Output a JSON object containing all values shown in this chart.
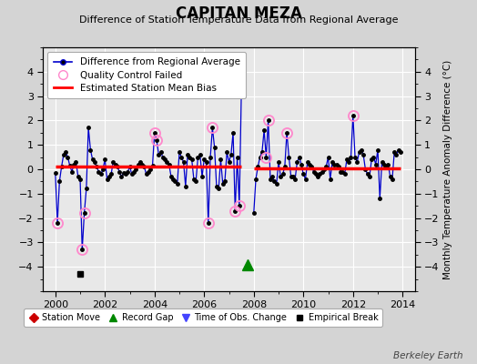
{
  "title": "CAPITAN MEZA",
  "subtitle": "Difference of Station Temperature Data from Regional Average",
  "ylabel": "Monthly Temperature Anomaly Difference (°C)",
  "xlim": [
    1999.5,
    2014.5
  ],
  "ylim": [
    -5,
    5
  ],
  "yticks": [
    -4,
    -3,
    -2,
    -1,
    0,
    1,
    2,
    3,
    4
  ],
  "xticks": [
    2000,
    2002,
    2004,
    2006,
    2008,
    2010,
    2012,
    2014
  ],
  "fig_facecolor": "#d4d4d4",
  "plot_facecolor": "#e8e8e8",
  "line_color": "#0000cc",
  "dot_color": "#000000",
  "bias_color": "#ff0000",
  "qc_color": "#ff88cc",
  "grid_color": "#ffffff",
  "watermark": "Berkeley Earth",
  "segment1_bias": 0.1,
  "segment2_bias": 0.05,
  "gap_start": 2007.583,
  "gap_end": 2007.75,
  "record_gap_x": 2007.75,
  "record_gap_y": -3.9,
  "empirical_break_x": 2001.0,
  "empirical_break_y": -4.3,
  "data": [
    [
      2000.0,
      -0.15
    ],
    [
      2000.083,
      -2.2
    ],
    [
      2000.167,
      -0.5
    ],
    [
      2000.25,
      0.1
    ],
    [
      2000.333,
      0.6
    ],
    [
      2000.417,
      0.7
    ],
    [
      2000.5,
      0.5
    ],
    [
      2000.583,
      0.15
    ],
    [
      2000.667,
      -0.1
    ],
    [
      2000.75,
      0.2
    ],
    [
      2000.833,
      0.3
    ],
    [
      2000.917,
      -0.3
    ],
    [
      2001.0,
      -0.4
    ],
    [
      2001.083,
      -3.3
    ],
    [
      2001.167,
      -1.8
    ],
    [
      2001.25,
      -0.8
    ],
    [
      2001.333,
      1.7
    ],
    [
      2001.417,
      0.8
    ],
    [
      2001.5,
      0.4
    ],
    [
      2001.583,
      0.3
    ],
    [
      2001.667,
      0.1
    ],
    [
      2001.75,
      -0.1
    ],
    [
      2001.833,
      -0.2
    ],
    [
      2001.917,
      0.0
    ],
    [
      2002.0,
      0.4
    ],
    [
      2002.083,
      -0.4
    ],
    [
      2002.167,
      -0.3
    ],
    [
      2002.25,
      -0.2
    ],
    [
      2002.333,
      0.3
    ],
    [
      2002.417,
      0.2
    ],
    [
      2002.5,
      0.1
    ],
    [
      2002.583,
      -0.1
    ],
    [
      2002.667,
      -0.3
    ],
    [
      2002.75,
      -0.15
    ],
    [
      2002.833,
      -0.2
    ],
    [
      2002.917,
      -0.1
    ],
    [
      2003.0,
      0.1
    ],
    [
      2003.083,
      -0.2
    ],
    [
      2003.167,
      -0.1
    ],
    [
      2003.25,
      0.0
    ],
    [
      2003.333,
      0.2
    ],
    [
      2003.417,
      0.3
    ],
    [
      2003.5,
      0.2
    ],
    [
      2003.583,
      0.1
    ],
    [
      2003.667,
      -0.2
    ],
    [
      2003.75,
      -0.1
    ],
    [
      2003.833,
      0.0
    ],
    [
      2003.917,
      0.15
    ],
    [
      2004.0,
      1.5
    ],
    [
      2004.083,
      1.2
    ],
    [
      2004.167,
      0.6
    ],
    [
      2004.25,
      0.7
    ],
    [
      2004.333,
      0.5
    ],
    [
      2004.417,
      0.4
    ],
    [
      2004.5,
      0.3
    ],
    [
      2004.583,
      0.2
    ],
    [
      2004.667,
      -0.3
    ],
    [
      2004.75,
      -0.4
    ],
    [
      2004.833,
      -0.5
    ],
    [
      2004.917,
      -0.6
    ],
    [
      2005.0,
      0.7
    ],
    [
      2005.083,
      0.5
    ],
    [
      2005.167,
      0.3
    ],
    [
      2005.25,
      -0.7
    ],
    [
      2005.333,
      0.6
    ],
    [
      2005.417,
      0.5
    ],
    [
      2005.5,
      0.4
    ],
    [
      2005.583,
      -0.4
    ],
    [
      2005.667,
      -0.5
    ],
    [
      2005.75,
      0.5
    ],
    [
      2005.833,
      0.6
    ],
    [
      2005.917,
      -0.3
    ],
    [
      2006.0,
      0.4
    ],
    [
      2006.083,
      0.3
    ],
    [
      2006.167,
      -2.2
    ],
    [
      2006.25,
      0.5
    ],
    [
      2006.333,
      1.7
    ],
    [
      2006.417,
      0.9
    ],
    [
      2006.5,
      -0.7
    ],
    [
      2006.583,
      -0.8
    ],
    [
      2006.667,
      0.4
    ],
    [
      2006.75,
      -0.6
    ],
    [
      2006.833,
      -0.5
    ],
    [
      2006.917,
      0.7
    ],
    [
      2007.0,
      0.3
    ],
    [
      2007.083,
      0.6
    ],
    [
      2007.167,
      1.5
    ],
    [
      2007.25,
      -1.7
    ],
    [
      2007.333,
      0.5
    ],
    [
      2007.417,
      -1.5
    ],
    [
      2007.5,
      3.2
    ],
    [
      2008.0,
      -1.8
    ],
    [
      2008.083,
      -0.4
    ],
    [
      2008.167,
      0.1
    ],
    [
      2008.25,
      0.5
    ],
    [
      2008.333,
      0.7
    ],
    [
      2008.417,
      1.6
    ],
    [
      2008.5,
      0.5
    ],
    [
      2008.583,
      2.0
    ],
    [
      2008.667,
      -0.4
    ],
    [
      2008.75,
      -0.3
    ],
    [
      2008.833,
      -0.5
    ],
    [
      2008.917,
      -0.6
    ],
    [
      2009.0,
      0.3
    ],
    [
      2009.083,
      -0.3
    ],
    [
      2009.167,
      -0.2
    ],
    [
      2009.25,
      0.1
    ],
    [
      2009.333,
      1.5
    ],
    [
      2009.417,
      0.5
    ],
    [
      2009.5,
      -0.3
    ],
    [
      2009.583,
      -0.3
    ],
    [
      2009.667,
      -0.4
    ],
    [
      2009.75,
      0.3
    ],
    [
      2009.833,
      0.5
    ],
    [
      2009.917,
      0.2
    ],
    [
      2010.0,
      -0.2
    ],
    [
      2010.083,
      -0.4
    ],
    [
      2010.167,
      0.3
    ],
    [
      2010.25,
      0.2
    ],
    [
      2010.333,
      0.1
    ],
    [
      2010.417,
      -0.1
    ],
    [
      2010.5,
      -0.2
    ],
    [
      2010.583,
      -0.3
    ],
    [
      2010.667,
      -0.2
    ],
    [
      2010.75,
      -0.1
    ],
    [
      2010.833,
      0.0
    ],
    [
      2010.917,
      0.1
    ],
    [
      2011.0,
      0.5
    ],
    [
      2011.083,
      -0.4
    ],
    [
      2011.167,
      0.3
    ],
    [
      2011.25,
      0.2
    ],
    [
      2011.333,
      0.2
    ],
    [
      2011.417,
      0.1
    ],
    [
      2011.5,
      -0.1
    ],
    [
      2011.583,
      -0.1
    ],
    [
      2011.667,
      -0.2
    ],
    [
      2011.75,
      0.4
    ],
    [
      2011.833,
      0.3
    ],
    [
      2011.917,
      0.5
    ],
    [
      2012.0,
      2.2
    ],
    [
      2012.083,
      0.5
    ],
    [
      2012.167,
      0.3
    ],
    [
      2012.25,
      0.7
    ],
    [
      2012.333,
      0.8
    ],
    [
      2012.417,
      0.6
    ],
    [
      2012.5,
      0.0
    ],
    [
      2012.583,
      -0.2
    ],
    [
      2012.667,
      -0.3
    ],
    [
      2012.75,
      0.4
    ],
    [
      2012.833,
      0.5
    ],
    [
      2012.917,
      0.2
    ],
    [
      2013.0,
      0.8
    ],
    [
      2013.083,
      -1.2
    ],
    [
      2013.167,
      0.3
    ],
    [
      2013.25,
      0.2
    ],
    [
      2013.333,
      0.1
    ],
    [
      2013.417,
      0.2
    ],
    [
      2013.5,
      -0.3
    ],
    [
      2013.583,
      -0.4
    ],
    [
      2013.667,
      0.7
    ],
    [
      2013.75,
      0.6
    ],
    [
      2013.833,
      0.8
    ],
    [
      2013.917,
      0.7
    ]
  ],
  "qc_failed_points": [
    [
      2000.083,
      -2.2
    ],
    [
      2001.083,
      -3.3
    ],
    [
      2001.167,
      -1.8
    ],
    [
      2004.0,
      1.5
    ],
    [
      2004.083,
      1.2
    ],
    [
      2006.167,
      -2.2
    ],
    [
      2006.333,
      1.7
    ],
    [
      2007.25,
      -1.7
    ],
    [
      2007.417,
      -1.5
    ],
    [
      2008.5,
      0.5
    ],
    [
      2008.583,
      2.0
    ],
    [
      2009.333,
      1.5
    ],
    [
      2012.0,
      2.2
    ]
  ]
}
